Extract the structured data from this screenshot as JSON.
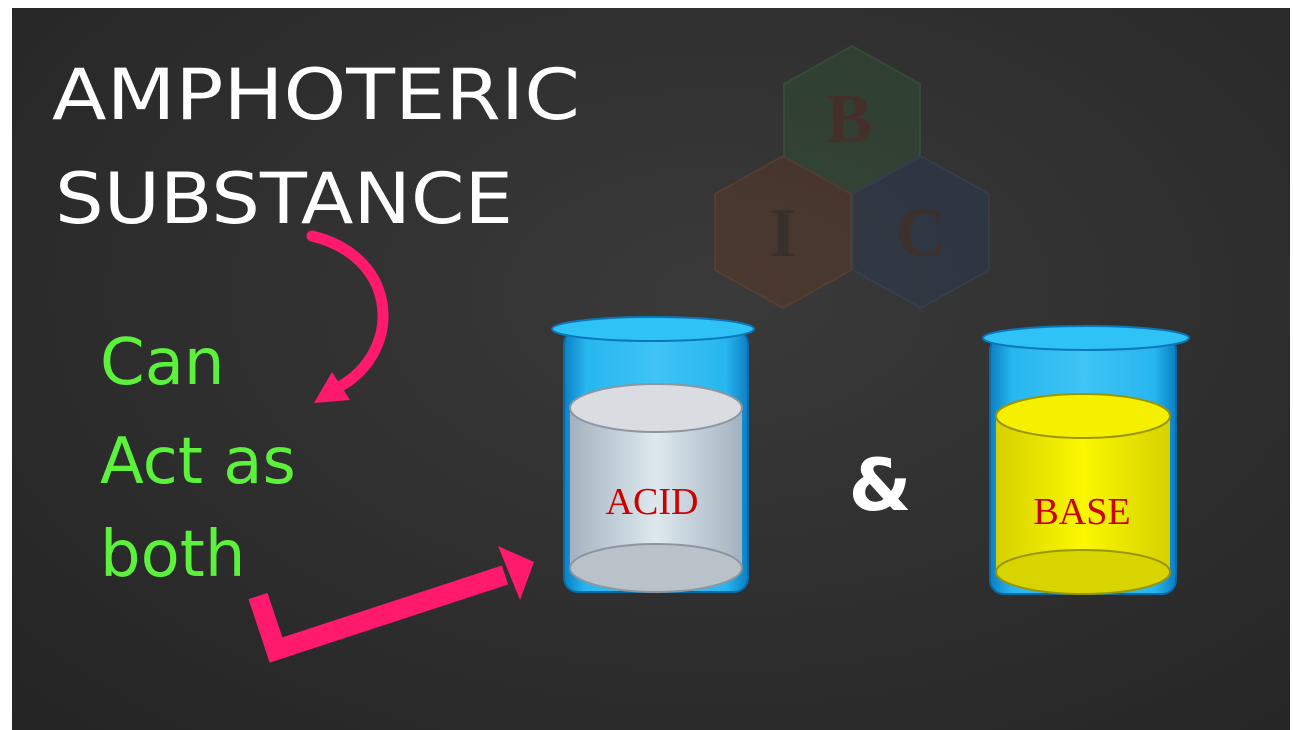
{
  "title": {
    "line1": "AMPHOTERIC",
    "line2": "SUBSTANCE"
  },
  "description": {
    "line1": "Can",
    "line2": "Act as",
    "line3": "both"
  },
  "logo": {
    "letters": [
      "B",
      "I",
      "C"
    ]
  },
  "beakers": [
    {
      "label": "ACID",
      "liquid_color": "#cfd6de"
    },
    {
      "label": "BASE",
      "liquid_color": "#f2f000"
    }
  ],
  "connector": "&",
  "colors": {
    "title": "#ffffff",
    "description": "#5cf23c",
    "arrow": "#ff1a6e",
    "beaker": "#1aa6e0",
    "label": "#cc0000"
  }
}
